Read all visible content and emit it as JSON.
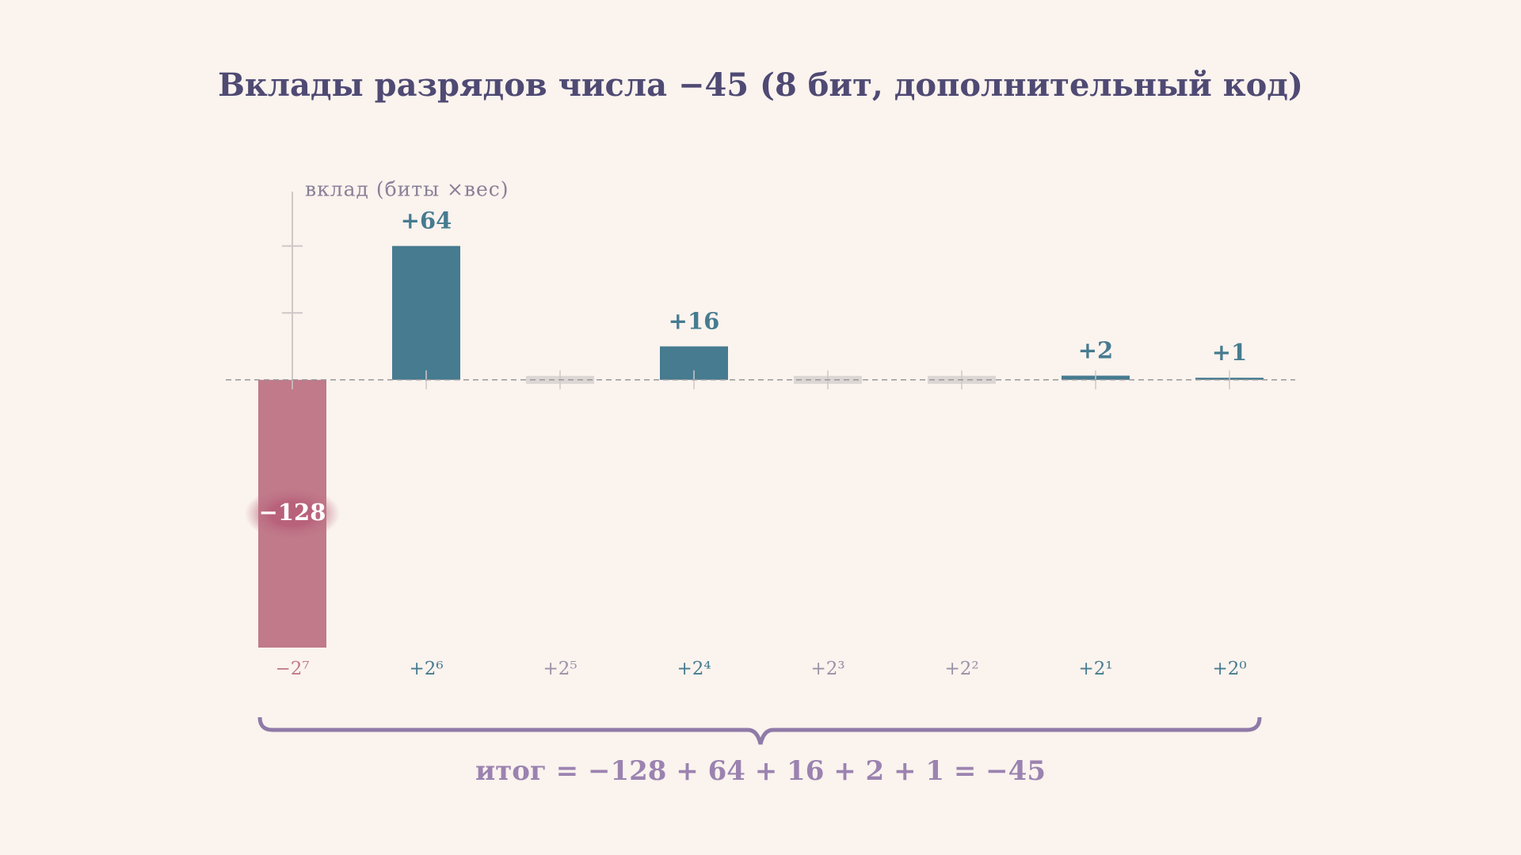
{
  "chart_data": {
    "type": "bar",
    "title": "Вклады разрядов числа −45 (8 бит, дополнительный код)",
    "y_label": "вклад (биты ×вес)",
    "categories": [
      "−2⁷",
      "+2⁶",
      "+2⁵",
      "+2⁴",
      "+2³",
      "+2²",
      "+2¹",
      "+2⁰"
    ],
    "values": [
      -128,
      64,
      0,
      16,
      0,
      0,
      2,
      1
    ],
    "value_labels": [
      "−128",
      "+64",
      null,
      "+16",
      null,
      null,
      "+2",
      "+1"
    ],
    "positive_color": "#467b90",
    "negative_color": "#c07a8a",
    "zero_color": "#dcd6d4",
    "ylim": [
      -128,
      90
    ],
    "yticks": [
      -96,
      -64,
      -32,
      32,
      64
    ],
    "summary": "итог = −128 + 64 + 16 + 2 + 1 = −45"
  }
}
